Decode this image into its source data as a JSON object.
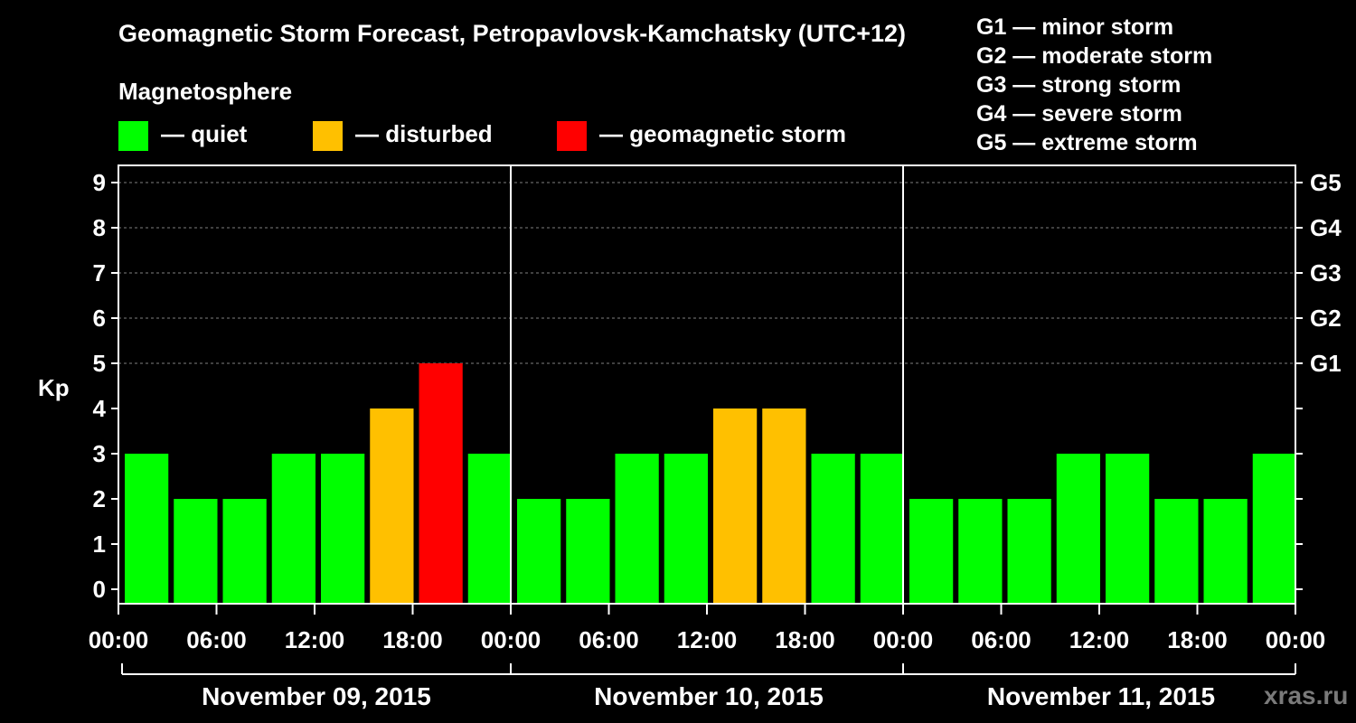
{
  "title": "Geomagnetic Storm Forecast, Petropavlovsk-Kamchatsky (UTC+12)",
  "legend": {
    "title": "Magnetosphere",
    "items": [
      {
        "label": "— quiet",
        "color": "#00ff00"
      },
      {
        "label": "— disturbed",
        "color": "#ffc000"
      },
      {
        "label": "— geomagnetic storm",
        "color": "#ff0000"
      }
    ]
  },
  "storm_scale": [
    "G1 — minor storm",
    "G2 — moderate storm",
    "G3 — strong storm",
    "G4 — severe storm",
    "G5 — extreme storm"
  ],
  "watermark": "xras.ru",
  "chart_data": {
    "type": "bar",
    "title": "Geomagnetic Storm Forecast, Petropavlovsk-Kamchatsky (UTC+12)",
    "ylabel": "Kp",
    "ylim": [
      0,
      9
    ],
    "y_ticks": [
      "0",
      "1",
      "2",
      "3",
      "4",
      "5",
      "6",
      "7",
      "8",
      "9"
    ],
    "g_levels": [
      {
        "kp": 5,
        "label": "G1"
      },
      {
        "kp": 6,
        "label": "G2"
      },
      {
        "kp": 7,
        "label": "G3"
      },
      {
        "kp": 8,
        "label": "G4"
      },
      {
        "kp": 9,
        "label": "G5"
      }
    ],
    "x_tick_labels": [
      "00:00",
      "06:00",
      "12:00",
      "18:00",
      "00:00",
      "06:00",
      "12:00",
      "18:00",
      "00:00",
      "06:00",
      "12:00",
      "18:00",
      "00:00"
    ],
    "days": [
      "November 09, 2015",
      "November 10, 2015",
      "November 11, 2015"
    ],
    "interval_hours": 3,
    "values": [
      3,
      2,
      2,
      3,
      3,
      4,
      5,
      3,
      2,
      2,
      3,
      3,
      4,
      4,
      3,
      3,
      2,
      2,
      2,
      3,
      3,
      2,
      2,
      3
    ],
    "thresholds": {
      "disturbed": 4,
      "storm": 5
    },
    "grid": true
  }
}
